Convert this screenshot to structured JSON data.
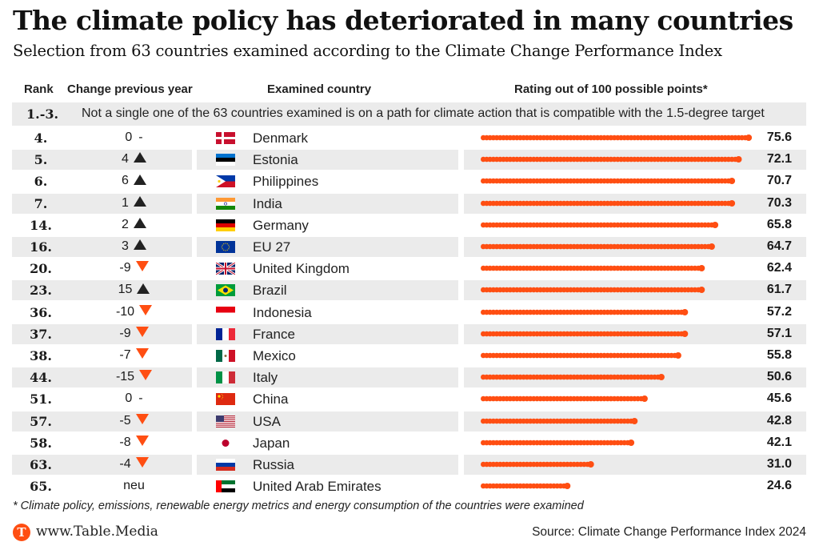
{
  "header": {
    "title": "The climate policy has deteriorated in many countries",
    "subtitle": "Selection from 63 countries examined according to the Climate Change Performance Index"
  },
  "columns": {
    "rank": "Rank",
    "change": "Change previous year",
    "country": "Examined country",
    "rating": "Rating out of 100 possible points*"
  },
  "banner": {
    "rank": "1.-3.",
    "text": "Not a single one of the 63 countries examined is on a path for climate action that is compatible with the 1.5-degree target"
  },
  "colors": {
    "accent": "#ff4e12",
    "up_arrow": "#222222",
    "down_arrow": "#ff4e12",
    "row_shade": "#ebebeb"
  },
  "chart_data": {
    "type": "table",
    "title": "The climate policy has deteriorated in many countries",
    "subtitle": "Selection from 63 countries examined according to the Climate Change Performance Index",
    "xlabel": "Rating out of 100 possible points*",
    "xlim": [
      0,
      100
    ],
    "rows": [
      {
        "rank": "4.",
        "change": "0",
        "trend": "none",
        "country": "Denmark",
        "flag": "denmark-flag-icon",
        "score": 75.6
      },
      {
        "rank": "5.",
        "change": "4",
        "trend": "up",
        "country": "Estonia",
        "flag": "estonia-flag-icon",
        "score": 72.1
      },
      {
        "rank": "6.",
        "change": "6",
        "trend": "up",
        "country": "Philippines",
        "flag": "philippines-flag-icon",
        "score": 70.7
      },
      {
        "rank": "7.",
        "change": "1",
        "trend": "up",
        "country": "India",
        "flag": "india-flag-icon",
        "score": 70.3
      },
      {
        "rank": "14.",
        "change": "2",
        "trend": "up",
        "country": "Germany",
        "flag": "germany-flag-icon",
        "score": 65.8
      },
      {
        "rank": "16.",
        "change": "3",
        "trend": "up",
        "country": "EU 27",
        "flag": "eu-flag-icon",
        "score": 64.7
      },
      {
        "rank": "20.",
        "change": "-9",
        "trend": "down",
        "country": "United Kingdom",
        "flag": "uk-flag-icon",
        "score": 62.4
      },
      {
        "rank": "23.",
        "change": "15",
        "trend": "up",
        "country": "Brazil",
        "flag": "brazil-flag-icon",
        "score": 61.7
      },
      {
        "rank": "36.",
        "change": "-10",
        "trend": "down",
        "country": "Indonesia",
        "flag": "indonesia-flag-icon",
        "score": 57.2
      },
      {
        "rank": "37.",
        "change": "-9",
        "trend": "down",
        "country": "France",
        "flag": "france-flag-icon",
        "score": 57.1
      },
      {
        "rank": "38.",
        "change": "-7",
        "trend": "down",
        "country": "Mexico",
        "flag": "mexico-flag-icon",
        "score": 55.8
      },
      {
        "rank": "44.",
        "change": "-15",
        "trend": "down",
        "country": "Italy",
        "flag": "italy-flag-icon",
        "score": 50.6
      },
      {
        "rank": "51.",
        "change": "0",
        "trend": "none",
        "country": "China",
        "flag": "china-flag-icon",
        "score": 45.6
      },
      {
        "rank": "57.",
        "change": "-5",
        "trend": "down",
        "country": "USA",
        "flag": "usa-flag-icon",
        "score": 42.8
      },
      {
        "rank": "58.",
        "change": "-8",
        "trend": "down",
        "country": "Japan",
        "flag": "japan-flag-icon",
        "score": 42.1
      },
      {
        "rank": "63.",
        "change": "-4",
        "trend": "down",
        "country": "Russia",
        "flag": "russia-flag-icon",
        "score": 31.0
      },
      {
        "rank": "65.",
        "change": "neu",
        "trend": "new",
        "country": "United Arab Emirates",
        "flag": "uae-flag-icon",
        "score": 24.6
      }
    ]
  },
  "footer": {
    "footnote": "* Climate policy, emissions, renewable energy metrics and energy consumption of the countries were examined",
    "logo_letter": "T",
    "site": "www.Table.Media",
    "source": "Source: Climate Change Performance Index 2024"
  }
}
